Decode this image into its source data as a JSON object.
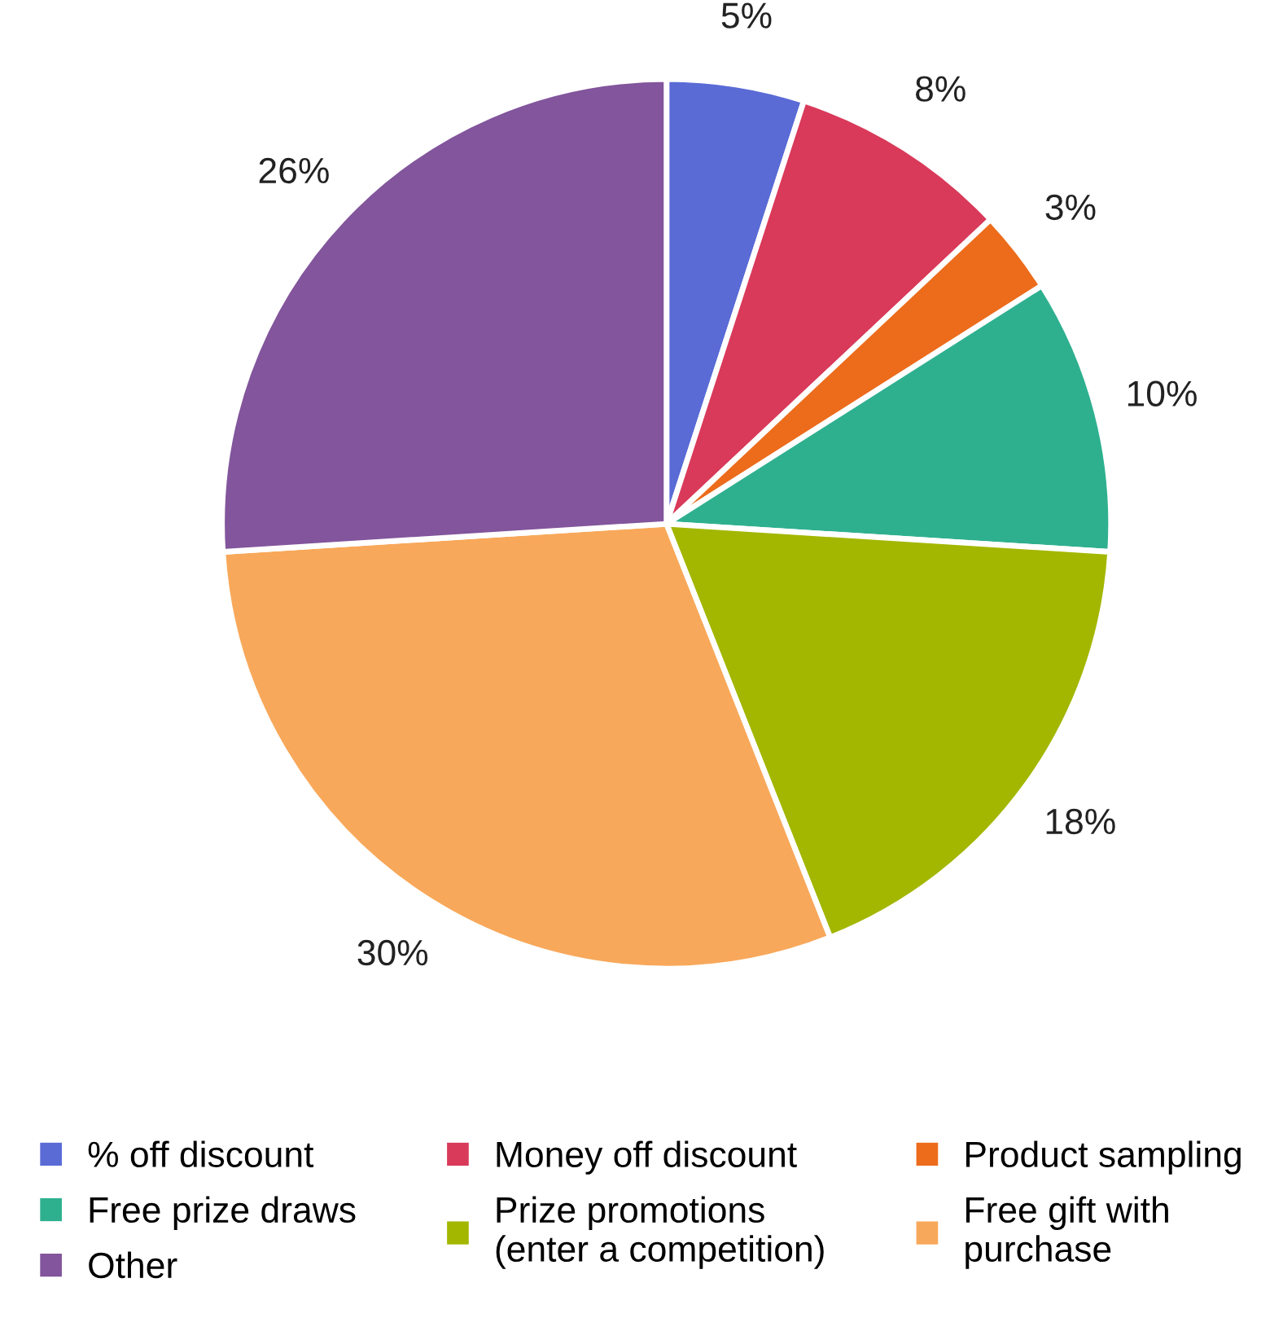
{
  "chart_data": {
    "type": "pie",
    "categories": [
      "% off discount",
      "Money off discount",
      "Product sampling",
      "Free prize draws",
      "Prize promotions\n(enter a competition)",
      "Free gift with\npurchase",
      "Other"
    ],
    "values": [
      5,
      8,
      3,
      10,
      18,
      30,
      26
    ],
    "value_labels": [
      "5%",
      "8%",
      "3%",
      "10%",
      "18%",
      "30%",
      "26%"
    ],
    "colors": [
      "#5a6bd6",
      "#d93a5a",
      "#ec6c1c",
      "#2eb08f",
      "#a3b700",
      "#f8a85a",
      "#82559c"
    ],
    "legend": "bottom"
  }
}
